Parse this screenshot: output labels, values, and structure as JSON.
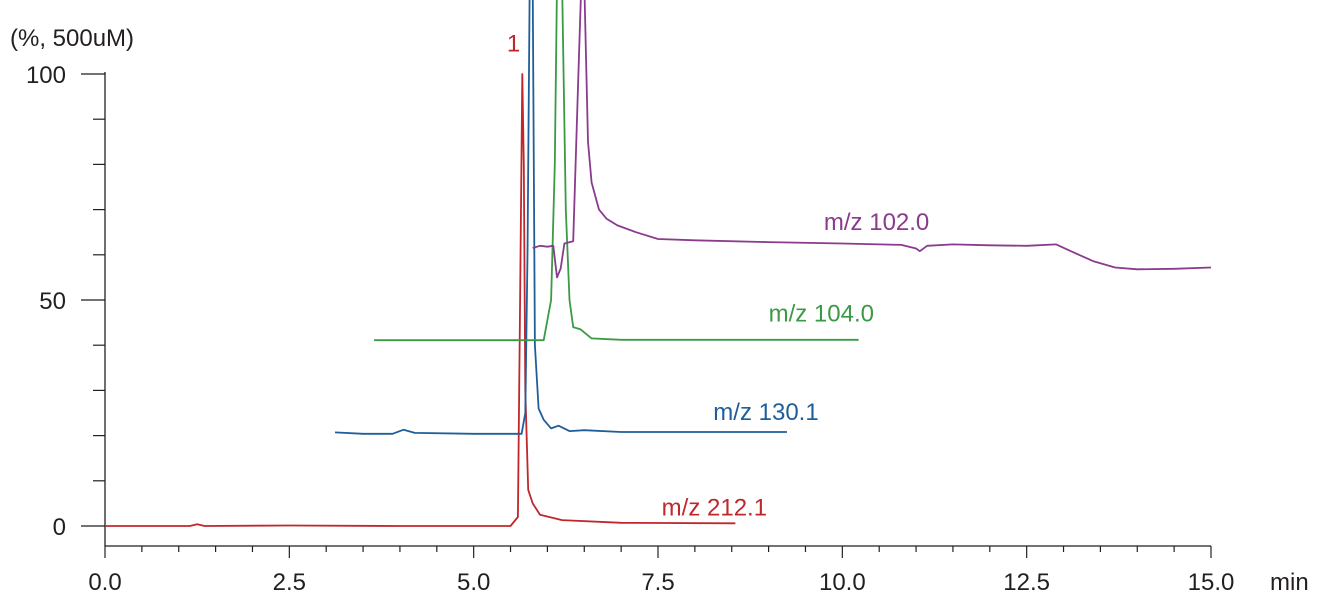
{
  "chart_data": {
    "type": "line",
    "ylabel": "(%, 500uM)",
    "xunit": "min",
    "xlim": [
      0.0,
      15.0
    ],
    "ylim": [
      0,
      100
    ],
    "x_ticks": [
      "0.0",
      "2.5",
      "5.0",
      "7.5",
      "10.0",
      "12.5",
      "15.0"
    ],
    "y_ticks": [
      "0",
      "50",
      "100"
    ],
    "grid": false,
    "peak_annotation": {
      "text": "1",
      "x": 5.45,
      "y": 105,
      "color": "#c0272d"
    },
    "series": [
      {
        "name": "m/z 212.1",
        "color": "#c0272d",
        "label_pos": [
          7.55,
          2.3
        ],
        "points": [
          [
            0.0,
            0
          ],
          [
            1.15,
            0
          ],
          [
            1.25,
            0.4
          ],
          [
            1.35,
            0
          ],
          [
            2.5,
            0.1
          ],
          [
            4.0,
            0
          ],
          [
            5.5,
            0
          ],
          [
            5.6,
            2
          ],
          [
            5.63,
            50
          ],
          [
            5.66,
            100
          ],
          [
            5.68,
            80
          ],
          [
            5.7,
            30
          ],
          [
            5.74,
            8
          ],
          [
            5.8,
            5
          ],
          [
            5.9,
            2.5
          ],
          [
            6.2,
            1.3
          ],
          [
            7.0,
            0.7
          ],
          [
            8.55,
            0.6
          ]
        ]
      },
      {
        "name": "m/z 130.1",
        "color": "#1f5e9b",
        "label_pos": [
          8.25,
          23.5
        ],
        "points": [
          [
            3.12,
            20.7
          ],
          [
            3.5,
            20.4
          ],
          [
            3.9,
            20.4
          ],
          [
            4.05,
            21.3
          ],
          [
            4.2,
            20.6
          ],
          [
            5.0,
            20.4
          ],
          [
            5.65,
            20.4
          ],
          [
            5.7,
            25
          ],
          [
            5.73,
            60
          ],
          [
            5.76,
            120
          ],
          [
            5.8,
            120
          ],
          [
            5.83,
            40
          ],
          [
            5.88,
            26
          ],
          [
            5.95,
            23.5
          ],
          [
            6.05,
            21.6
          ],
          [
            6.15,
            22.2
          ],
          [
            6.3,
            21
          ],
          [
            6.5,
            21.2
          ],
          [
            7.0,
            20.8
          ],
          [
            9.25,
            20.8
          ]
        ]
      },
      {
        "name": "m/z 104.0",
        "color": "#3a9a45",
        "label_pos": [
          9.0,
          45.2
        ],
        "points": [
          [
            3.65,
            41.1
          ],
          [
            5.0,
            41.1
          ],
          [
            5.95,
            41.1
          ],
          [
            6.05,
            50
          ],
          [
            6.1,
            80
          ],
          [
            6.13,
            120
          ],
          [
            6.2,
            120
          ],
          [
            6.25,
            70
          ],
          [
            6.3,
            50
          ],
          [
            6.35,
            44
          ],
          [
            6.45,
            43.5
          ],
          [
            6.6,
            41.5
          ],
          [
            7.0,
            41.2
          ],
          [
            10.22,
            41.2
          ]
        ]
      },
      {
        "name": "m/z 102.0",
        "color": "#8a3b8d",
        "label_pos": [
          9.75,
          65.5
        ],
        "points": [
          [
            5.8,
            61.5
          ],
          [
            5.9,
            62
          ],
          [
            6.0,
            61.8
          ],
          [
            6.08,
            62
          ],
          [
            6.13,
            55
          ],
          [
            6.18,
            57
          ],
          [
            6.23,
            62.5
          ],
          [
            6.35,
            63
          ],
          [
            6.42,
            100
          ],
          [
            6.46,
            120
          ],
          [
            6.5,
            120
          ],
          [
            6.55,
            85
          ],
          [
            6.6,
            76
          ],
          [
            6.7,
            70
          ],
          [
            6.8,
            68
          ],
          [
            6.95,
            66.5
          ],
          [
            7.2,
            65
          ],
          [
            7.5,
            63.5
          ],
          [
            8.0,
            63.2
          ],
          [
            9.0,
            62.8
          ],
          [
            10.0,
            62.5
          ],
          [
            10.8,
            62.2
          ],
          [
            11.0,
            61.4
          ],
          [
            11.05,
            60.8
          ],
          [
            11.15,
            62
          ],
          [
            11.5,
            62.3
          ],
          [
            12.0,
            62.1
          ],
          [
            12.5,
            62
          ],
          [
            12.9,
            62.3
          ],
          [
            13.1,
            60.8
          ],
          [
            13.4,
            58.6
          ],
          [
            13.7,
            57.2
          ],
          [
            14.0,
            56.8
          ],
          [
            14.5,
            56.9
          ],
          [
            15.0,
            57.2
          ]
        ]
      }
    ]
  }
}
